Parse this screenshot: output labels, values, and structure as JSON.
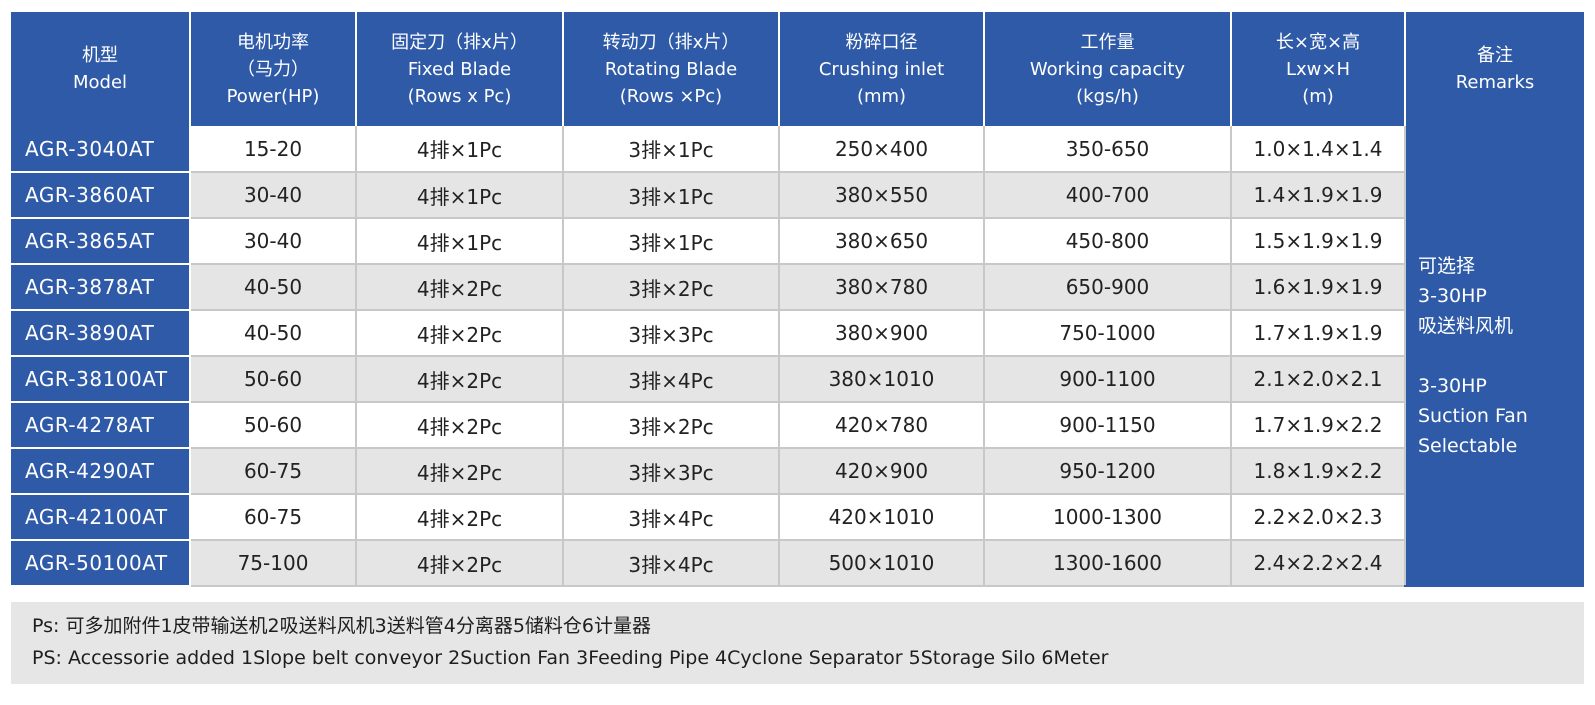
{
  "header": {
    "model": [
      "机型",
      "Model"
    ],
    "power": [
      "电机功率",
      "（马力）",
      "Power(HP)"
    ],
    "fixed_blade": [
      "固定刀（排x片）",
      "Fixed Blade",
      "(Rows x Pc)"
    ],
    "rotating_blade": [
      "转动刀（排x片）",
      "Rotating Blade",
      "(Rows ×Pc)"
    ],
    "crushing_inlet": [
      "粉碎口径",
      "Crushing inlet",
      "(mm)"
    ],
    "working_capacity": [
      "工作量",
      "Working capacity",
      "(kgs/h)"
    ],
    "dimensions": [
      "长×宽×高",
      "Lxw×H",
      "(m)"
    ],
    "remarks": [
      "备注",
      "Remarks"
    ]
  },
  "rows": [
    {
      "model": "AGR-3040AT",
      "power": "15-20",
      "fixed": "4排×1Pc",
      "rotating": "3排×1Pc",
      "inlet": "250×400",
      "capacity": "350-650",
      "dims": "1.0×1.4×1.4"
    },
    {
      "model": "AGR-3860AT",
      "power": "30-40",
      "fixed": "4排×1Pc",
      "rotating": "3排×1Pc",
      "inlet": "380×550",
      "capacity": "400-700",
      "dims": "1.4×1.9×1.9"
    },
    {
      "model": "AGR-3865AT",
      "power": "30-40",
      "fixed": "4排×1Pc",
      "rotating": "3排×1Pc",
      "inlet": "380×650",
      "capacity": "450-800",
      "dims": "1.5×1.9×1.9"
    },
    {
      "model": "AGR-3878AT",
      "power": "40-50",
      "fixed": "4排×2Pc",
      "rotating": "3排×2Pc",
      "inlet": "380×780",
      "capacity": "650-900",
      "dims": "1.6×1.9×1.9"
    },
    {
      "model": "AGR-3890AT",
      "power": "40-50",
      "fixed": "4排×2Pc",
      "rotating": "3排×3Pc",
      "inlet": "380×900",
      "capacity": "750-1000",
      "dims": "1.7×1.9×1.9"
    },
    {
      "model": "AGR-38100AT",
      "power": "50-60",
      "fixed": "4排×2Pc",
      "rotating": "3排×4Pc",
      "inlet": "380×1010",
      "capacity": "900-1100",
      "dims": "2.1×2.0×2.1"
    },
    {
      "model": "AGR-4278AT",
      "power": "50-60",
      "fixed": "4排×2Pc",
      "rotating": "3排×2Pc",
      "inlet": "420×780",
      "capacity": "900-1150",
      "dims": "1.7×1.9×2.2"
    },
    {
      "model": "AGR-4290AT",
      "power": "60-75",
      "fixed": "4排×2Pc",
      "rotating": "3排×3Pc",
      "inlet": "420×900",
      "capacity": "950-1200",
      "dims": "1.8×1.9×2.2"
    },
    {
      "model": "AGR-42100AT",
      "power": "60-75",
      "fixed": "4排×2Pc",
      "rotating": "3排×4Pc",
      "inlet": "420×1010",
      "capacity": "1000-1300",
      "dims": "2.2×2.0×2.3"
    },
    {
      "model": "AGR-50100AT",
      "power": "75-100",
      "fixed": "4排×2Pc",
      "rotating": "3排×4Pc",
      "inlet": "500×1010",
      "capacity": "1300-1600",
      "dims": "2.4×2.2×2.4"
    }
  ],
  "remarks": {
    "cn": [
      "可选择",
      "3-30HP",
      "吸送料风机"
    ],
    "en": [
      "3-30HP",
      "Suction Fan",
      "Selectable"
    ]
  },
  "notes": {
    "cn": "Ps: 可多加附件1皮带输送机2吸送料风机3送料管4分离器5储料仓6计量器",
    "en": "PS: Accessorie added 1Slope belt conveyor 2Suction Fan 3Feeding Pipe 4Cyclone Separator 5Storage Silo 6Meter"
  },
  "colors": {
    "header_blue": "#2f5aa8",
    "row_alt": "#e5e5e5",
    "notes_bg": "#e6e6e6"
  }
}
